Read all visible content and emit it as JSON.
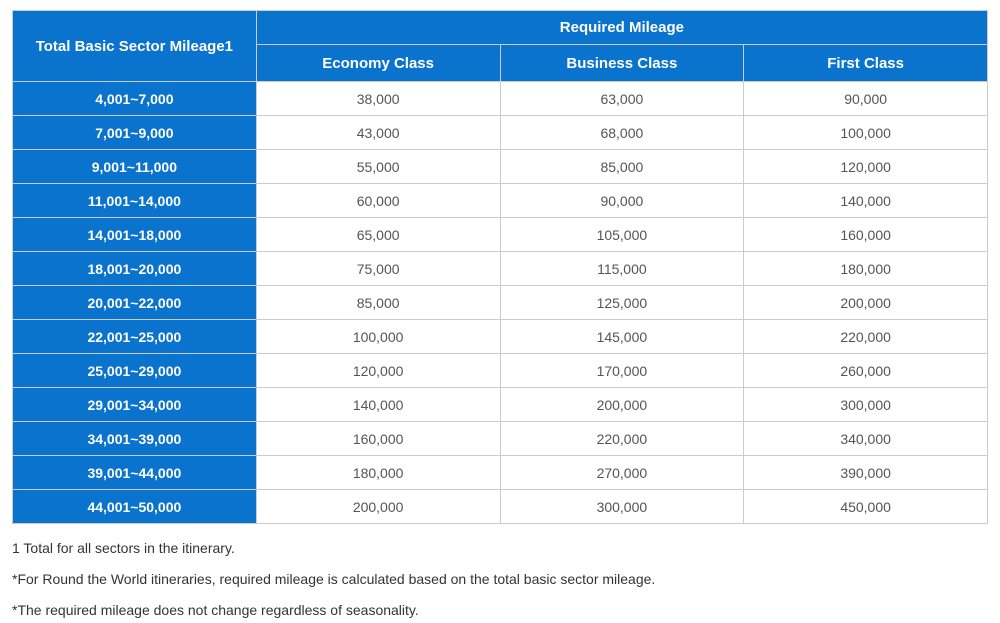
{
  "colors": {
    "header_blue": "#0a73cd",
    "border_gray": "#cccccc",
    "value_text": "#555555",
    "footnote_text": "#333333"
  },
  "table": {
    "row_header": "Total Basic Sector Mileage1",
    "group_header": "Required Mileage",
    "class_headers": [
      "Economy Class",
      "Business Class",
      "First Class"
    ],
    "rows": [
      {
        "range": "4,001~7,000",
        "economy": "38,000",
        "business": "63,000",
        "first": "90,000"
      },
      {
        "range": "7,001~9,000",
        "economy": "43,000",
        "business": "68,000",
        "first": "100,000"
      },
      {
        "range": "9,001~11,000",
        "economy": "55,000",
        "business": "85,000",
        "first": "120,000"
      },
      {
        "range": "11,001~14,000",
        "economy": "60,000",
        "business": "90,000",
        "first": "140,000"
      },
      {
        "range": "14,001~18,000",
        "economy": "65,000",
        "business": "105,000",
        "first": "160,000"
      },
      {
        "range": "18,001~20,000",
        "economy": "75,000",
        "business": "115,000",
        "first": "180,000"
      },
      {
        "range": "20,001~22,000",
        "economy": "85,000",
        "business": "125,000",
        "first": "200,000"
      },
      {
        "range": "22,001~25,000",
        "economy": "100,000",
        "business": "145,000",
        "first": "220,000"
      },
      {
        "range": "25,001~29,000",
        "economy": "120,000",
        "business": "170,000",
        "first": "260,000"
      },
      {
        "range": "29,001~34,000",
        "economy": "140,000",
        "business": "200,000",
        "first": "300,000"
      },
      {
        "range": "34,001~39,000",
        "economy": "160,000",
        "business": "220,000",
        "first": "340,000"
      },
      {
        "range": "39,001~44,000",
        "economy": "180,000",
        "business": "270,000",
        "first": "390,000"
      },
      {
        "range": "44,001~50,000",
        "economy": "200,000",
        "business": "300,000",
        "first": "450,000"
      }
    ]
  },
  "footnotes": [
    "1 Total for all sectors in the itinerary.",
    "*For Round the World itineraries, required mileage is calculated based on the total basic sector mileage.",
    "*The required mileage does not change regardless of seasonality."
  ]
}
